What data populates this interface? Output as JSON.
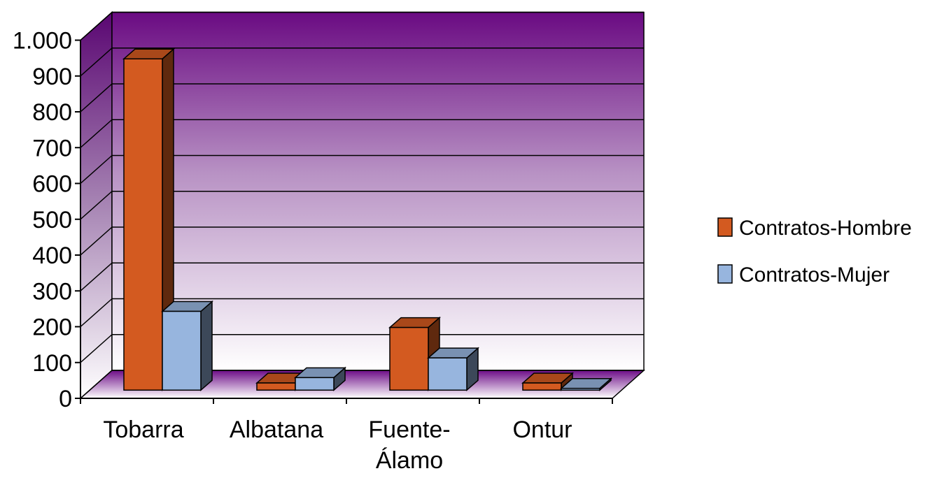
{
  "chart_data": {
    "type": "bar",
    "title": "",
    "xlabel": "",
    "ylabel": "",
    "ylim": [
      0,
      1000
    ],
    "y_ticks": [
      {
        "value": 0,
        "label": "0"
      },
      {
        "value": 100,
        "label": "100"
      },
      {
        "value": 200,
        "label": "200"
      },
      {
        "value": 300,
        "label": "300"
      },
      {
        "value": 400,
        "label": "400"
      },
      {
        "value": 500,
        "label": "500"
      },
      {
        "value": 600,
        "label": "600"
      },
      {
        "value": 700,
        "label": "700"
      },
      {
        "value": 800,
        "label": "800"
      },
      {
        "value": 900,
        "label": "900"
      },
      {
        "value": 1000,
        "label": "1.000"
      }
    ],
    "categories": [
      {
        "label": "Tobarra",
        "lines": [
          "Tobarra"
        ]
      },
      {
        "label": "Albatana",
        "lines": [
          "Albatana"
        ]
      },
      {
        "label": "Fuente-Álamo",
        "lines": [
          "Fuente-",
          "Álamo"
        ]
      },
      {
        "label": "Ontur",
        "lines": [
          "Ontur"
        ]
      }
    ],
    "series": [
      {
        "name": "Contratos-Hombre",
        "color": "#d35a20",
        "values": [
          925,
          20,
          175,
          20
        ]
      },
      {
        "name": "Contratos-Mujer",
        "color": "#97b5de",
        "values": [
          220,
          35,
          90,
          5
        ]
      }
    ],
    "legend": "right",
    "grid": true,
    "style": "3d-clustered-column",
    "wall_gradient": [
      "#6a0a82",
      "#ffffff"
    ]
  }
}
